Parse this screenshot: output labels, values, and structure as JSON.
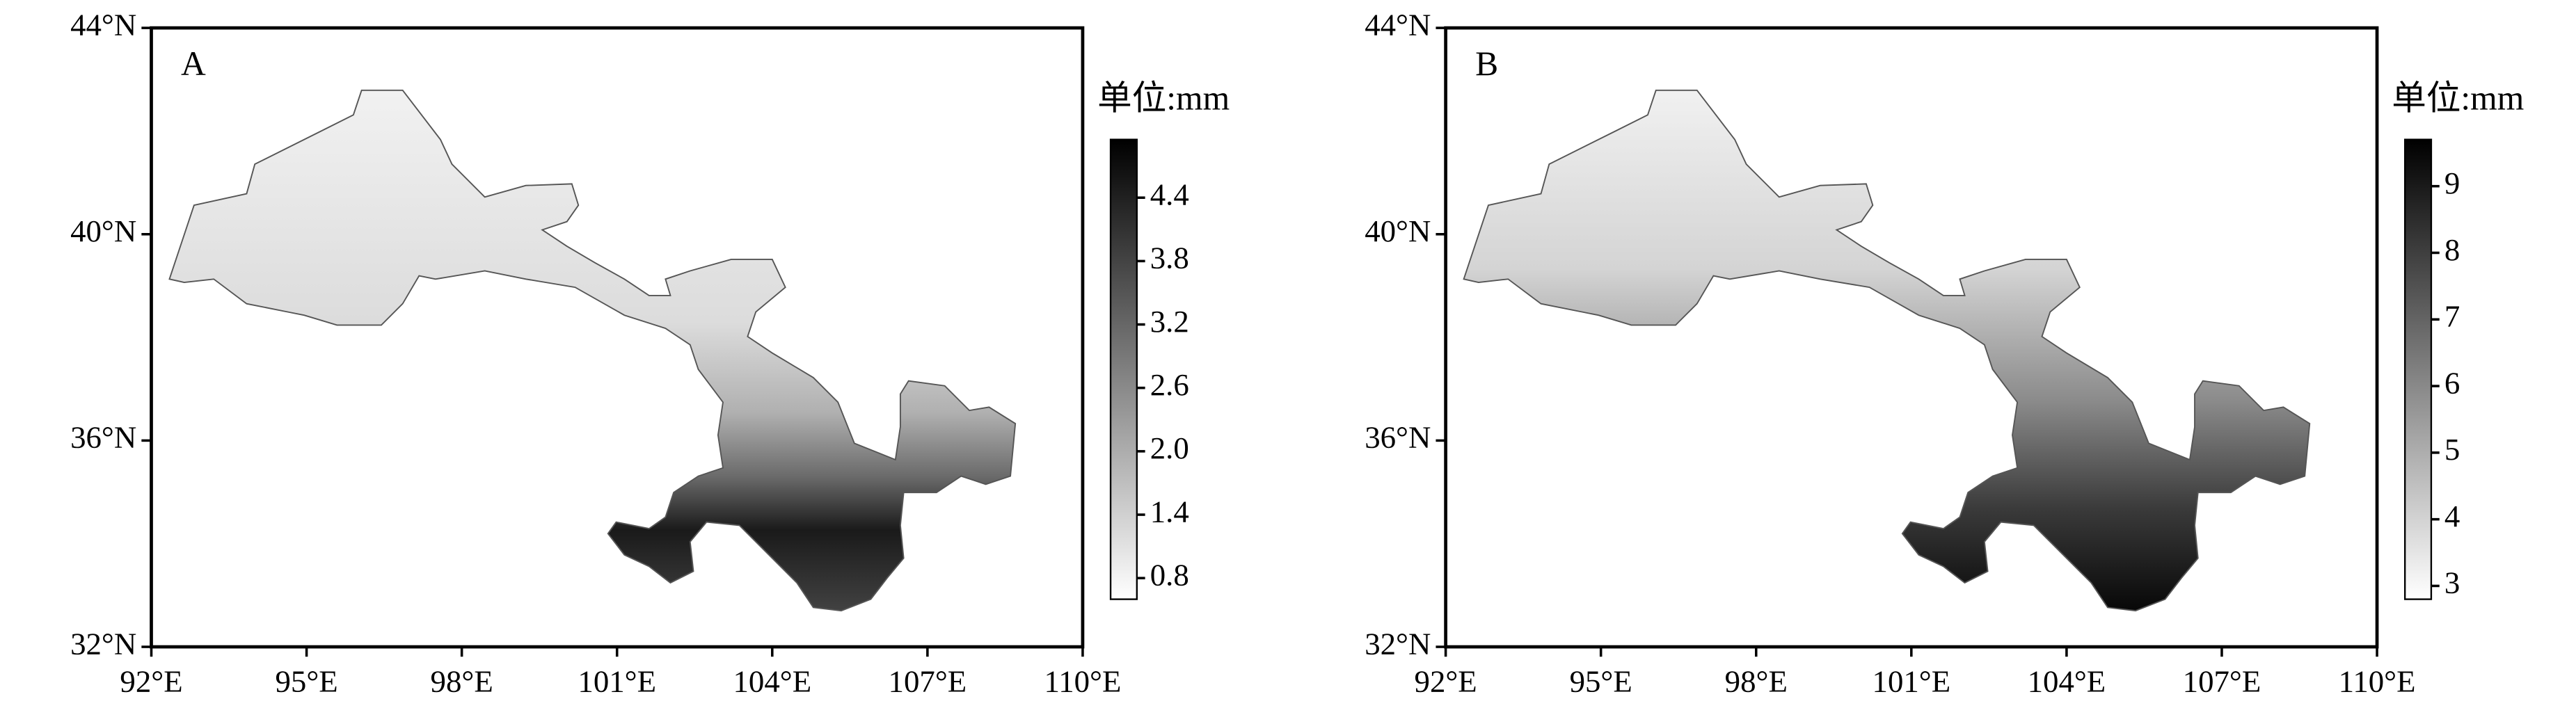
{
  "panels": [
    {
      "label": "A",
      "xlim": [
        92,
        110
      ],
      "xticks": [
        {
          "value": 92,
          "label": "92°E"
        },
        {
          "value": 95,
          "label": "95°E"
        },
        {
          "value": 98,
          "label": "98°E"
        },
        {
          "value": 101,
          "label": "101°E"
        },
        {
          "value": 104,
          "label": "104°E"
        },
        {
          "value": 107,
          "label": "107°E"
        },
        {
          "value": 110,
          "label": "110°E"
        }
      ],
      "ylim": [
        32,
        44
      ],
      "yticks": [
        {
          "value": 32,
          "label": "32°N"
        },
        {
          "value": 36,
          "label": "36°N"
        },
        {
          "value": 40,
          "label": "40°N"
        },
        {
          "value": 44,
          "label": "44°N"
        }
      ],
      "colorbar": {
        "title": "单位:mm",
        "lim": [
          0.6,
          4.95
        ],
        "ticks": [
          0.8,
          1.4,
          {
            "value": 2,
            "label": "2.0"
          },
          2.6,
          3.2,
          3.8,
          4.4
        ]
      }
    },
    {
      "label": "B",
      "xlim": [
        92,
        110
      ],
      "xticks": [
        {
          "value": 92,
          "label": "92°E"
        },
        {
          "value": 95,
          "label": "95°E"
        },
        {
          "value": 98,
          "label": "98°E"
        },
        {
          "value": 101,
          "label": "101°E"
        },
        {
          "value": 104,
          "label": "104°E"
        },
        {
          "value": 107,
          "label": "107°E"
        },
        {
          "value": 110,
          "label": "110°E"
        }
      ],
      "ylim": [
        32,
        44
      ],
      "yticks": [
        {
          "value": 32,
          "label": "32°N"
        },
        {
          "value": 36,
          "label": "36°N"
        },
        {
          "value": 40,
          "label": "40°N"
        },
        {
          "value": 44,
          "label": "44°N"
        }
      ],
      "colorbar": {
        "title": "单位:mm",
        "lim": [
          2.8,
          9.7
        ],
        "ticks": [
          3,
          4,
          5,
          6,
          7,
          8,
          9
        ]
      }
    }
  ]
}
